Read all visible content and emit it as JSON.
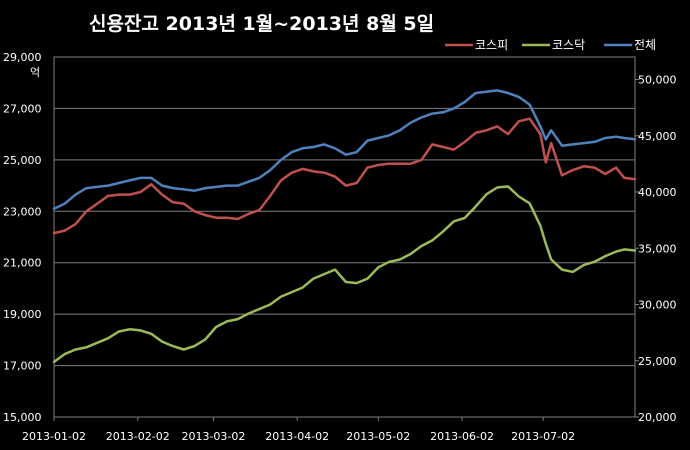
{
  "chart_data": {
    "type": "line",
    "title": "신용잔고 2013년 1월~2013년 8월 5일",
    "y_left_unit": "억",
    "y_left": {
      "min": 15000,
      "max": 29000,
      "ticks": [
        "15,000",
        "17,000",
        "19,000",
        "21,000",
        "23,000",
        "25,000",
        "27,000",
        "29,000"
      ]
    },
    "y_right": {
      "min": 20000,
      "max": 52000,
      "ticks": [
        "20,000",
        "25,000",
        "30,000",
        "35,000",
        "40,000",
        "45,000",
        "50,000"
      ]
    },
    "x_ticks": [
      "2013-01-02",
      "2013-02-02",
      "2013-03-02",
      "2013-04-02",
      "2013-05-02",
      "2013-06-02",
      "2013-07-02"
    ],
    "x_range": [
      "2013-01-02",
      "2013-08-05"
    ],
    "grid": "horizontal",
    "legend_position": "top-right",
    "series": [
      {
        "name": "코스피",
        "axis": "left",
        "color": "#c0504d",
        "points": [
          [
            "2013-01-02",
            22150
          ],
          [
            "2013-01-06",
            22250
          ],
          [
            "2013-01-10",
            22500
          ],
          [
            "2013-01-14",
            23000
          ],
          [
            "2013-01-18",
            23300
          ],
          [
            "2013-01-22",
            23600
          ],
          [
            "2013-01-26",
            23650
          ],
          [
            "2013-01-30",
            23650
          ],
          [
            "2013-02-03",
            23750
          ],
          [
            "2013-02-07",
            24050
          ],
          [
            "2013-02-11",
            23650
          ],
          [
            "2013-02-15",
            23350
          ],
          [
            "2013-02-19",
            23300
          ],
          [
            "2013-02-23",
            23000
          ],
          [
            "2013-02-27",
            22850
          ],
          [
            "2013-03-03",
            22750
          ],
          [
            "2013-03-07",
            22750
          ],
          [
            "2013-03-11",
            22700
          ],
          [
            "2013-03-15",
            22900
          ],
          [
            "2013-03-19",
            23050
          ],
          [
            "2013-03-23",
            23600
          ],
          [
            "2013-03-27",
            24200
          ],
          [
            "2013-03-31",
            24500
          ],
          [
            "2013-04-04",
            24650
          ],
          [
            "2013-04-08",
            24550
          ],
          [
            "2013-04-12",
            24500
          ],
          [
            "2013-04-16",
            24350
          ],
          [
            "2013-04-20",
            24000
          ],
          [
            "2013-04-24",
            24100
          ],
          [
            "2013-04-28",
            24700
          ],
          [
            "2013-05-02",
            24800
          ],
          [
            "2013-05-06",
            24850
          ],
          [
            "2013-05-10",
            24850
          ],
          [
            "2013-05-14",
            24850
          ],
          [
            "2013-05-18",
            25000
          ],
          [
            "2013-05-22",
            25600
          ],
          [
            "2013-05-26",
            25500
          ],
          [
            "2013-05-30",
            25400
          ],
          [
            "2013-06-03",
            25700
          ],
          [
            "2013-06-07",
            26050
          ],
          [
            "2013-06-11",
            26150
          ],
          [
            "2013-06-15",
            26300
          ],
          [
            "2013-06-19",
            26000
          ],
          [
            "2013-06-23",
            26500
          ],
          [
            "2013-06-27",
            26600
          ],
          [
            "2013-07-01",
            26000
          ],
          [
            "2013-07-03",
            24900
          ],
          [
            "2013-07-05",
            25650
          ],
          [
            "2013-07-09",
            24400
          ],
          [
            "2013-07-13",
            24600
          ],
          [
            "2013-07-17",
            24750
          ],
          [
            "2013-07-21",
            24700
          ],
          [
            "2013-07-25",
            24450
          ],
          [
            "2013-07-29",
            24700
          ],
          [
            "2013-08-01",
            24300
          ],
          [
            "2013-08-05",
            24250
          ]
        ]
      },
      {
        "name": "코스닥",
        "axis": "right",
        "color": "#9bbb59",
        "points": [
          [
            "2013-01-02",
            24900
          ],
          [
            "2013-01-06",
            25600
          ],
          [
            "2013-01-10",
            26000
          ],
          [
            "2013-01-14",
            26200
          ],
          [
            "2013-01-18",
            26600
          ],
          [
            "2013-01-22",
            27000
          ],
          [
            "2013-01-26",
            27600
          ],
          [
            "2013-01-30",
            27800
          ],
          [
            "2013-02-03",
            27700
          ],
          [
            "2013-02-07",
            27400
          ],
          [
            "2013-02-11",
            26700
          ],
          [
            "2013-02-15",
            26300
          ],
          [
            "2013-02-19",
            26000
          ],
          [
            "2013-02-23",
            26300
          ],
          [
            "2013-02-27",
            26900
          ],
          [
            "2013-03-03",
            28000
          ],
          [
            "2013-03-07",
            28500
          ],
          [
            "2013-03-11",
            28700
          ],
          [
            "2013-03-15",
            29200
          ],
          [
            "2013-03-19",
            29600
          ],
          [
            "2013-03-23",
            30000
          ],
          [
            "2013-03-27",
            30700
          ],
          [
            "2013-03-31",
            31100
          ],
          [
            "2013-04-04",
            31500
          ],
          [
            "2013-04-08",
            32300
          ],
          [
            "2013-04-12",
            32700
          ],
          [
            "2013-04-16",
            33100
          ],
          [
            "2013-04-20",
            32000
          ],
          [
            "2013-04-24",
            31900
          ],
          [
            "2013-04-28",
            32300
          ],
          [
            "2013-05-02",
            33300
          ],
          [
            "2013-05-06",
            33800
          ],
          [
            "2013-05-10",
            34000
          ],
          [
            "2013-05-14",
            34500
          ],
          [
            "2013-05-18",
            35200
          ],
          [
            "2013-05-22",
            35700
          ],
          [
            "2013-05-26",
            36500
          ],
          [
            "2013-05-30",
            37400
          ],
          [
            "2013-06-03",
            37700
          ],
          [
            "2013-06-07",
            38700
          ],
          [
            "2013-06-11",
            39800
          ],
          [
            "2013-06-15",
            40400
          ],
          [
            "2013-06-19",
            40500
          ],
          [
            "2013-06-23",
            39600
          ],
          [
            "2013-06-27",
            39000
          ],
          [
            "2013-07-01",
            37000
          ],
          [
            "2013-07-03",
            35400
          ],
          [
            "2013-07-05",
            34000
          ],
          [
            "2013-07-09",
            33100
          ],
          [
            "2013-07-13",
            32900
          ],
          [
            "2013-07-17",
            33500
          ],
          [
            "2013-07-21",
            33800
          ],
          [
            "2013-07-25",
            34300
          ],
          [
            "2013-07-29",
            34700
          ],
          [
            "2013-08-01",
            34900
          ],
          [
            "2013-08-05",
            34800
          ]
        ]
      },
      {
        "name": "전체",
        "axis": "left",
        "color": "#4f81bd",
        "points": [
          [
            "2013-01-02",
            23100
          ],
          [
            "2013-01-06",
            23300
          ],
          [
            "2013-01-10",
            23650
          ],
          [
            "2013-01-14",
            23900
          ],
          [
            "2013-01-18",
            23950
          ],
          [
            "2013-01-22",
            24000
          ],
          [
            "2013-01-26",
            24100
          ],
          [
            "2013-01-30",
            24200
          ],
          [
            "2013-02-03",
            24300
          ],
          [
            "2013-02-07",
            24300
          ],
          [
            "2013-02-11",
            24000
          ],
          [
            "2013-02-15",
            23900
          ],
          [
            "2013-02-19",
            23850
          ],
          [
            "2013-02-23",
            23800
          ],
          [
            "2013-02-27",
            23900
          ],
          [
            "2013-03-03",
            23950
          ],
          [
            "2013-03-07",
            24000
          ],
          [
            "2013-03-11",
            24000
          ],
          [
            "2013-03-15",
            24150
          ],
          [
            "2013-03-19",
            24300
          ],
          [
            "2013-03-23",
            24600
          ],
          [
            "2013-03-27",
            25000
          ],
          [
            "2013-03-31",
            25300
          ],
          [
            "2013-04-04",
            25450
          ],
          [
            "2013-04-08",
            25500
          ],
          [
            "2013-04-12",
            25600
          ],
          [
            "2013-04-16",
            25450
          ],
          [
            "2013-04-20",
            25200
          ],
          [
            "2013-04-24",
            25300
          ],
          [
            "2013-04-28",
            25750
          ],
          [
            "2013-05-02",
            25850
          ],
          [
            "2013-05-06",
            25950
          ],
          [
            "2013-05-10",
            26150
          ],
          [
            "2013-05-14",
            26450
          ],
          [
            "2013-05-18",
            26650
          ],
          [
            "2013-05-22",
            26800
          ],
          [
            "2013-05-26",
            26850
          ],
          [
            "2013-05-30",
            27000
          ],
          [
            "2013-06-03",
            27250
          ],
          [
            "2013-06-07",
            27600
          ],
          [
            "2013-06-11",
            27650
          ],
          [
            "2013-06-15",
            27700
          ],
          [
            "2013-06-19",
            27600
          ],
          [
            "2013-06-23",
            27450
          ],
          [
            "2013-06-27",
            27150
          ],
          [
            "2013-07-01",
            26300
          ],
          [
            "2013-07-03",
            25800
          ],
          [
            "2013-07-05",
            26150
          ],
          [
            "2013-07-09",
            25550
          ],
          [
            "2013-07-13",
            25600
          ],
          [
            "2013-07-17",
            25650
          ],
          [
            "2013-07-21",
            25700
          ],
          [
            "2013-07-25",
            25850
          ],
          [
            "2013-07-29",
            25900
          ],
          [
            "2013-08-01",
            25850
          ],
          [
            "2013-08-05",
            25800
          ]
        ]
      }
    ]
  }
}
